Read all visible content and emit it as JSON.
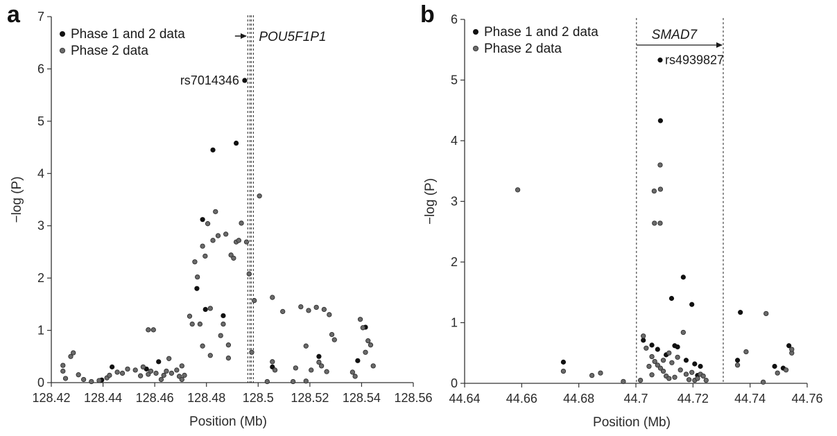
{
  "chart_data": [
    {
      "type": "scatter",
      "panel_label": "a",
      "xlabel": "Position (Mb)",
      "ylabel": "−log (P)",
      "xlim": [
        128.42,
        128.56
      ],
      "ylim": [
        0,
        7
      ],
      "xticks": [
        "128.42",
        "128.44",
        "128.46",
        "128.48",
        "128.5",
        "128.52",
        "128.54",
        "128.56"
      ],
      "yticks": [
        "0",
        "1",
        "2",
        "3",
        "4",
        "5",
        "6",
        "7"
      ],
      "legend": {
        "placement": "top-left",
        "entries": [
          "Phase 1 and 2 data",
          "Phase 2 data"
        ]
      },
      "gene": {
        "name": "POU5F1P1",
        "start": 128.4964,
        "end": 128.4976,
        "direction": "right"
      },
      "annotation": {
        "label": "rs7014346",
        "x": 128.4948,
        "y": 5.78
      },
      "series": [
        {
          "name": "Phase 1 and 2 data",
          "points": [
            [
              128.4948,
              5.78
            ],
            [
              128.4915,
              4.58
            ],
            [
              128.4825,
              4.45
            ],
            [
              128.4785,
              3.12
            ],
            [
              128.4763,
              1.8
            ],
            [
              128.4796,
              1.4
            ],
            [
              128.4865,
              1.28
            ],
            [
              128.5235,
              0.5
            ],
            [
              128.5415,
              1.06
            ],
            [
              128.5385,
              0.42
            ],
            [
              128.5055,
              0.3
            ],
            [
              128.4615,
              0.4
            ],
            [
              128.4435,
              0.3
            ],
            [
              128.4568,
              0.26
            ],
            [
              128.4395,
              0.05
            ]
          ]
        },
        {
          "name": "Phase 2 data",
          "points": [
            [
              128.4245,
              0.33
            ],
            [
              128.4245,
              0.22
            ],
            [
              128.4255,
              0.08
            ],
            [
              128.4275,
              0.5
            ],
            [
              128.4285,
              0.57
            ],
            [
              128.4305,
              0.15
            ],
            [
              128.4325,
              0.06
            ],
            [
              128.4355,
              0.02
            ],
            [
              128.4385,
              0.04
            ],
            [
              128.4415,
              0.09
            ],
            [
              128.4425,
              0.14
            ],
            [
              128.4455,
              0.2
            ],
            [
              128.4475,
              0.18
            ],
            [
              128.4495,
              0.26
            ],
            [
              128.4525,
              0.24
            ],
            [
              128.4545,
              0.13
            ],
            [
              128.4555,
              0.3
            ],
            [
              128.4575,
              0.16
            ],
            [
              128.4585,
              0.22
            ],
            [
              128.4575,
              1.01
            ],
            [
              128.4595,
              1.01
            ],
            [
              128.4605,
              0.18
            ],
            [
              128.4625,
              0.06
            ],
            [
              128.4635,
              0.14
            ],
            [
              128.4645,
              0.22
            ],
            [
              128.4655,
              0.46
            ],
            [
              128.4665,
              0.18
            ],
            [
              128.4685,
              0.24
            ],
            [
              128.4695,
              0.12
            ],
            [
              128.4705,
              0.32
            ],
            [
              128.4715,
              0.14
            ],
            [
              128.4735,
              1.27
            ],
            [
              128.4745,
              1.12
            ],
            [
              128.4755,
              2.31
            ],
            [
              128.4765,
              2.02
            ],
            [
              128.4775,
              1.12
            ],
            [
              128.4785,
              2.61
            ],
            [
              128.4785,
              0.7
            ],
            [
              128.4795,
              2.42
            ],
            [
              128.4805,
              3.04
            ],
            [
              128.4815,
              1.42
            ],
            [
              128.4815,
              0.52
            ],
            [
              128.4825,
              2.72
            ],
            [
              128.4835,
              3.27
            ],
            [
              128.4845,
              2.81
            ],
            [
              128.4855,
              0.9
            ],
            [
              128.4865,
              1.12
            ],
            [
              128.4875,
              2.84
            ],
            [
              128.4885,
              0.72
            ],
            [
              128.4895,
              2.44
            ],
            [
              128.4905,
              2.38
            ],
            [
              128.4915,
              2.69
            ],
            [
              128.4925,
              2.72
            ],
            [
              128.4935,
              3.05
            ],
            [
              128.4955,
              2.69
            ],
            [
              128.4965,
              2.08
            ],
            [
              128.4975,
              0.58
            ],
            [
              128.4985,
              1.57
            ],
            [
              128.5005,
              3.57
            ],
            [
              128.5055,
              1.63
            ],
            [
              128.5055,
              0.4
            ],
            [
              128.5065,
              0.24
            ],
            [
              128.5095,
              1.36
            ],
            [
              128.5145,
              0.28
            ],
            [
              128.5165,
              1.45
            ],
            [
              128.5185,
              0.7
            ],
            [
              128.5195,
              1.38
            ],
            [
              128.5205,
              0.24
            ],
            [
              128.5225,
              1.44
            ],
            [
              128.5235,
              0.39
            ],
            [
              128.5245,
              0.32
            ],
            [
              128.5255,
              1.4
            ],
            [
              128.5265,
              0.21
            ],
            [
              128.5275,
              1.3
            ],
            [
              128.5285,
              0.92
            ],
            [
              128.5295,
              0.82
            ],
            [
              128.5365,
              0.2
            ],
            [
              128.5375,
              0.12
            ],
            [
              128.5395,
              1.21
            ],
            [
              128.5405,
              1.05
            ],
            [
              128.5415,
              0.58
            ],
            [
              128.5425,
              0.8
            ],
            [
              128.5435,
              0.72
            ],
            [
              128.5445,
              0.32
            ],
            [
              128.4885,
              0.47
            ],
            [
              128.4705,
              0.06
            ],
            [
              128.5035,
              0.02
            ],
            [
              128.5135,
              0.02
            ],
            [
              128.5185,
              0.03
            ]
          ]
        }
      ]
    },
    {
      "type": "scatter",
      "panel_label": "b",
      "xlabel": "Position (Mb)",
      "ylabel": "−log (P)",
      "xlim": [
        44.64,
        44.76
      ],
      "ylim": [
        0,
        6
      ],
      "xticks": [
        "44.64",
        "44.66",
        "44.68",
        "44.7",
        "44.72",
        "44.74",
        "44.76"
      ],
      "yticks": [
        "0",
        "1",
        "2",
        "3",
        "4",
        "5",
        "6"
      ],
      "legend": {
        "placement": "top-left",
        "entries": [
          "Phase 1 and 2 data",
          "Phase 2 data"
        ]
      },
      "gene": {
        "name": "SMAD7",
        "start": 44.7002,
        "end": 44.7306,
        "direction": "right"
      },
      "annotation": {
        "label": "rs4939827",
        "x": 44.7085,
        "y": 5.33
      },
      "series": [
        {
          "name": "Phase 1 and 2 data",
          "points": [
            [
              44.7085,
              5.33
            ],
            [
              44.7086,
              4.33
            ],
            [
              44.7166,
              1.75
            ],
            [
              44.7125,
              1.4
            ],
            [
              44.7196,
              1.3
            ],
            [
              44.7366,
              1.17
            ],
            [
              44.6746,
              0.35
            ],
            [
              44.7026,
              0.71
            ],
            [
              44.7056,
              0.63
            ],
            [
              44.7076,
              0.56
            ],
            [
              44.7106,
              0.47
            ],
            [
              44.7136,
              0.62
            ],
            [
              44.7146,
              0.6
            ],
            [
              44.7176,
              0.38
            ],
            [
              44.7206,
              0.32
            ],
            [
              44.7226,
              0.28
            ],
            [
              44.7486,
              0.28
            ],
            [
              44.7516,
              0.25
            ],
            [
              44.7536,
              0.62
            ],
            [
              44.7356,
              0.38
            ],
            [
              44.7216,
              0.13
            ]
          ]
        },
        {
          "name": "Phase 2 data",
          "points": [
            [
              44.6586,
              3.19
            ],
            [
              44.7064,
              3.17
            ],
            [
              44.7085,
              3.6
            ],
            [
              44.7086,
              3.2
            ],
            [
              44.7065,
              2.64
            ],
            [
              44.7085,
              2.64
            ],
            [
              44.6746,
              0.2
            ],
            [
              44.6846,
              0.13
            ],
            [
              44.6876,
              0.17
            ],
            [
              44.6956,
              0.03
            ],
            [
              44.7016,
              0.05
            ],
            [
              44.7026,
              0.78
            ],
            [
              44.7036,
              0.58
            ],
            [
              44.7056,
              0.44
            ],
            [
              44.7066,
              0.36
            ],
            [
              44.7076,
              0.3
            ],
            [
              44.7086,
              0.25
            ],
            [
              44.7096,
              0.2
            ],
            [
              44.7106,
              0.12
            ],
            [
              44.7116,
              0.08
            ],
            [
              44.7126,
              0.34
            ],
            [
              44.7136,
              0.1
            ],
            [
              44.7146,
              0.43
            ],
            [
              44.7156,
              0.22
            ],
            [
              44.7166,
              0.84
            ],
            [
              44.7176,
              0.15
            ],
            [
              44.7186,
              0.06
            ],
            [
              44.7196,
              0.18
            ],
            [
              44.7206,
              0.05
            ],
            [
              44.7216,
              0.08
            ],
            [
              44.7226,
              0.15
            ],
            [
              44.7236,
              0.12
            ],
            [
              44.7246,
              0.05
            ],
            [
              44.7356,
              0.3
            ],
            [
              44.7386,
              0.52
            ],
            [
              44.7446,
              0.02
            ],
            [
              44.7456,
              1.15
            ],
            [
              44.7496,
              0.17
            ],
            [
              44.7526,
              0.22
            ],
            [
              44.7546,
              0.5
            ],
            [
              44.7546,
              0.56
            ],
            [
              44.7046,
              0.28
            ],
            [
              44.7056,
              0.14
            ],
            [
              44.7096,
              0.38
            ],
            [
              44.7116,
              0.5
            ]
          ]
        }
      ]
    }
  ]
}
